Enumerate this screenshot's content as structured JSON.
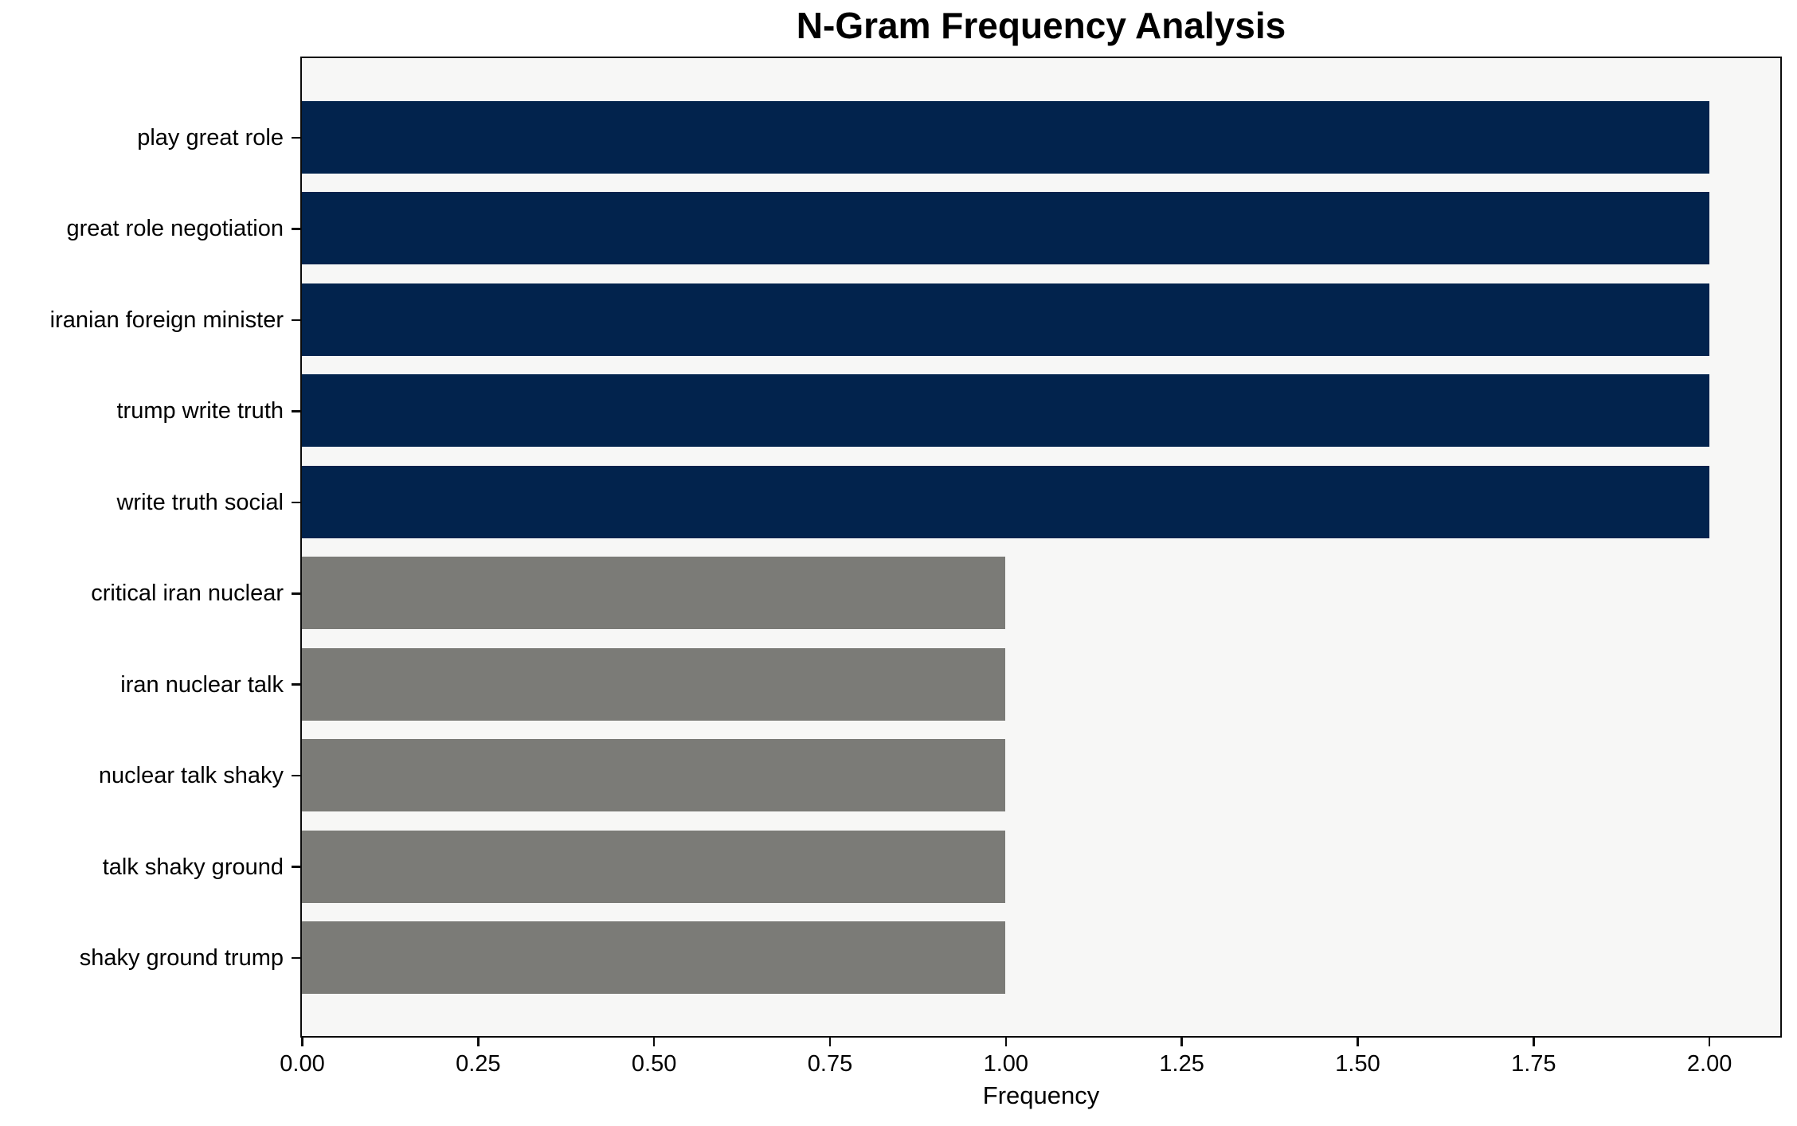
{
  "chart_data": {
    "type": "bar",
    "orientation": "horizontal",
    "title": "N-Gram Frequency Analysis",
    "xlabel": "Frequency",
    "ylabel": "",
    "categories": [
      "play great role",
      "great role negotiation",
      "iranian foreign minister",
      "trump write truth",
      "write truth social",
      "critical iran nuclear",
      "iran nuclear talk",
      "nuclear talk shaky",
      "talk shaky ground",
      "shaky ground trump"
    ],
    "values": [
      2,
      2,
      2,
      2,
      2,
      1,
      1,
      1,
      1,
      1
    ],
    "bar_colors": [
      "#02234d",
      "#02234d",
      "#02234d",
      "#02234d",
      "#02234d",
      "#7b7b77",
      "#7b7b77",
      "#7b7b77",
      "#7b7b77",
      "#7b7b77"
    ],
    "xlim": [
      0,
      2.1
    ],
    "xticks": {
      "values": [
        0.0,
        0.25,
        0.5,
        0.75,
        1.0,
        1.25,
        1.5,
        1.75,
        2.0
      ],
      "labels": [
        "0.00",
        "0.25",
        "0.50",
        "0.75",
        "1.00",
        "1.25",
        "1.50",
        "1.75",
        "2.00"
      ]
    },
    "grid": false,
    "legend_position": "none",
    "colors": {
      "high_frequency_bar": "#02234d",
      "low_frequency_bar": "#7b7b77",
      "plot_background": "#f7f7f6",
      "figure_background": "#ffffff",
      "axis_frame": "#0b0b0b",
      "text": "#000000"
    }
  }
}
